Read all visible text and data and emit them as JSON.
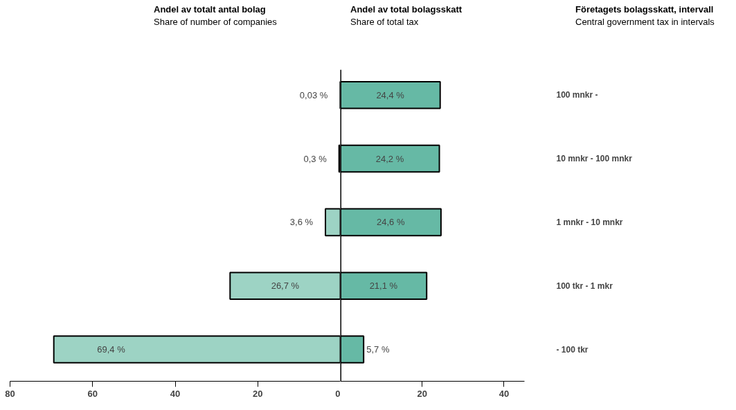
{
  "chart_data": [
    {
      "type": "bar",
      "orientation": "horizontal",
      "title": "Andel av totalt antal bolag",
      "subtitle": "Share of number of companies",
      "categories": [
        null,
        null,
        null,
        null,
        null
      ],
      "values": [
        0.03,
        0.3,
        3.6,
        26.7,
        69.4
      ],
      "color": "#9dd3c4",
      "value_labels": [
        "0,03 %",
        "0,3 %",
        "3,6 %",
        "26,7 %",
        "69,4 %"
      ],
      "xlim": [
        80,
        0
      ],
      "xticks": [
        80,
        60,
        40,
        20,
        0
      ],
      "grid": false
    },
    {
      "type": "bar",
      "orientation": "horizontal",
      "title": "Andel av total bolagsskatt",
      "subtitle": "Share of total tax",
      "ylabel": "Företagets bolagsskatt, intervall",
      "annotations": [
        "Central government tax in intervals"
      ],
      "categories": [
        "100 mnkr -",
        "10 mnkr - 100 mnkr",
        "1 mnkr - 10 mnkr",
        "100 tkr - 1 mkr",
        "- 100 tkr"
      ],
      "values": [
        24.4,
        24.2,
        24.6,
        21.1,
        5.7
      ],
      "color": "#66b9a5",
      "value_labels": [
        "24,4 %",
        "24,2 %",
        "24,6 %",
        "21,1 %",
        "5,7 %"
      ],
      "xlim": [
        0,
        45
      ],
      "xticks": [
        20,
        40
      ],
      "ref_lines": [
        {
          "axis": "x",
          "value": 0,
          "color": "#000000"
        }
      ],
      "grid": false
    }
  ]
}
